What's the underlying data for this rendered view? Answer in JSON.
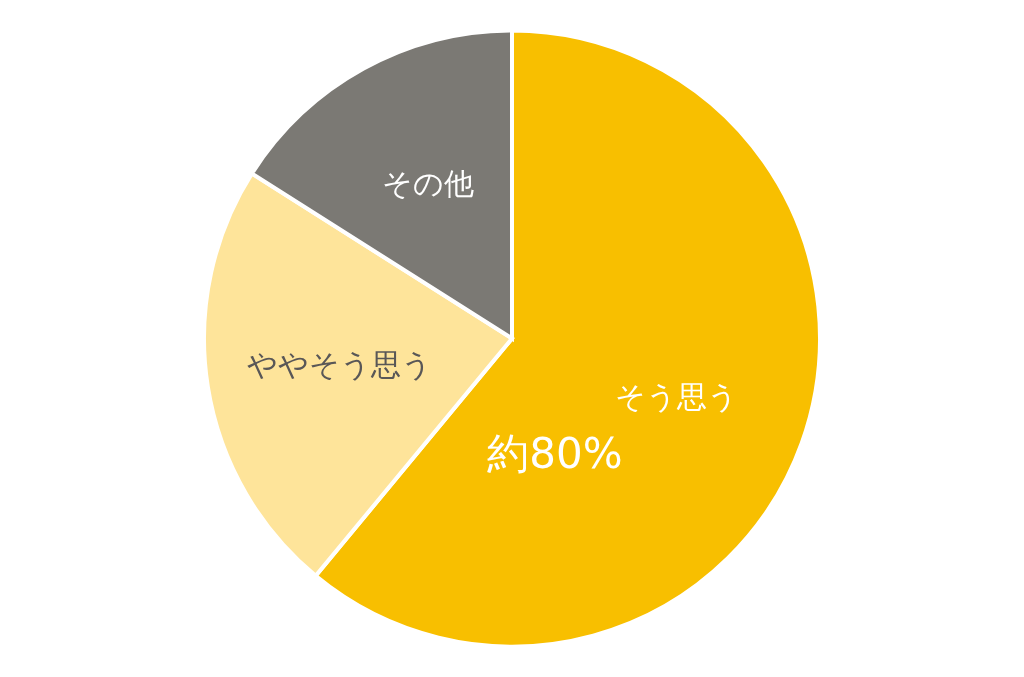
{
  "chart_data": {
    "type": "pie",
    "categories": [
      "そう思う",
      "ややそう思う",
      "その他"
    ],
    "values": [
      61,
      23,
      16
    ],
    "colors": [
      "#f8bf00",
      "#fee49a",
      "#7b7974"
    ],
    "annotations": [
      "約80%"
    ]
  }
}
